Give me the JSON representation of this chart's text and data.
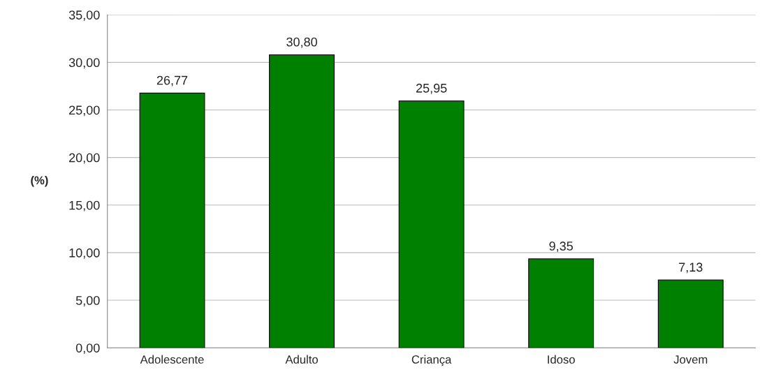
{
  "chart_data": {
    "type": "bar",
    "categories": [
      "Adolescente",
      "Adulto",
      "Criança",
      "Idoso",
      "Jovem"
    ],
    "values": [
      26.77,
      30.8,
      25.95,
      9.35,
      7.13
    ],
    "value_labels": [
      "26,77",
      "30,80",
      "25,95",
      "9,35",
      "7,13"
    ],
    "color": "#008000",
    "ylabel": "(%)",
    "ylim": [
      0,
      35
    ],
    "yticks": [
      {
        "value": 0,
        "label": "0,00"
      },
      {
        "value": 5,
        "label": "5,00"
      },
      {
        "value": 10,
        "label": "10,00"
      },
      {
        "value": 15,
        "label": "15,00"
      },
      {
        "value": 20,
        "label": "20,00"
      },
      {
        "value": 25,
        "label": "25,00"
      },
      {
        "value": 30,
        "label": "30,00"
      },
      {
        "value": 35,
        "label": "35,00"
      }
    ],
    "grid": "y",
    "legend": false
  }
}
